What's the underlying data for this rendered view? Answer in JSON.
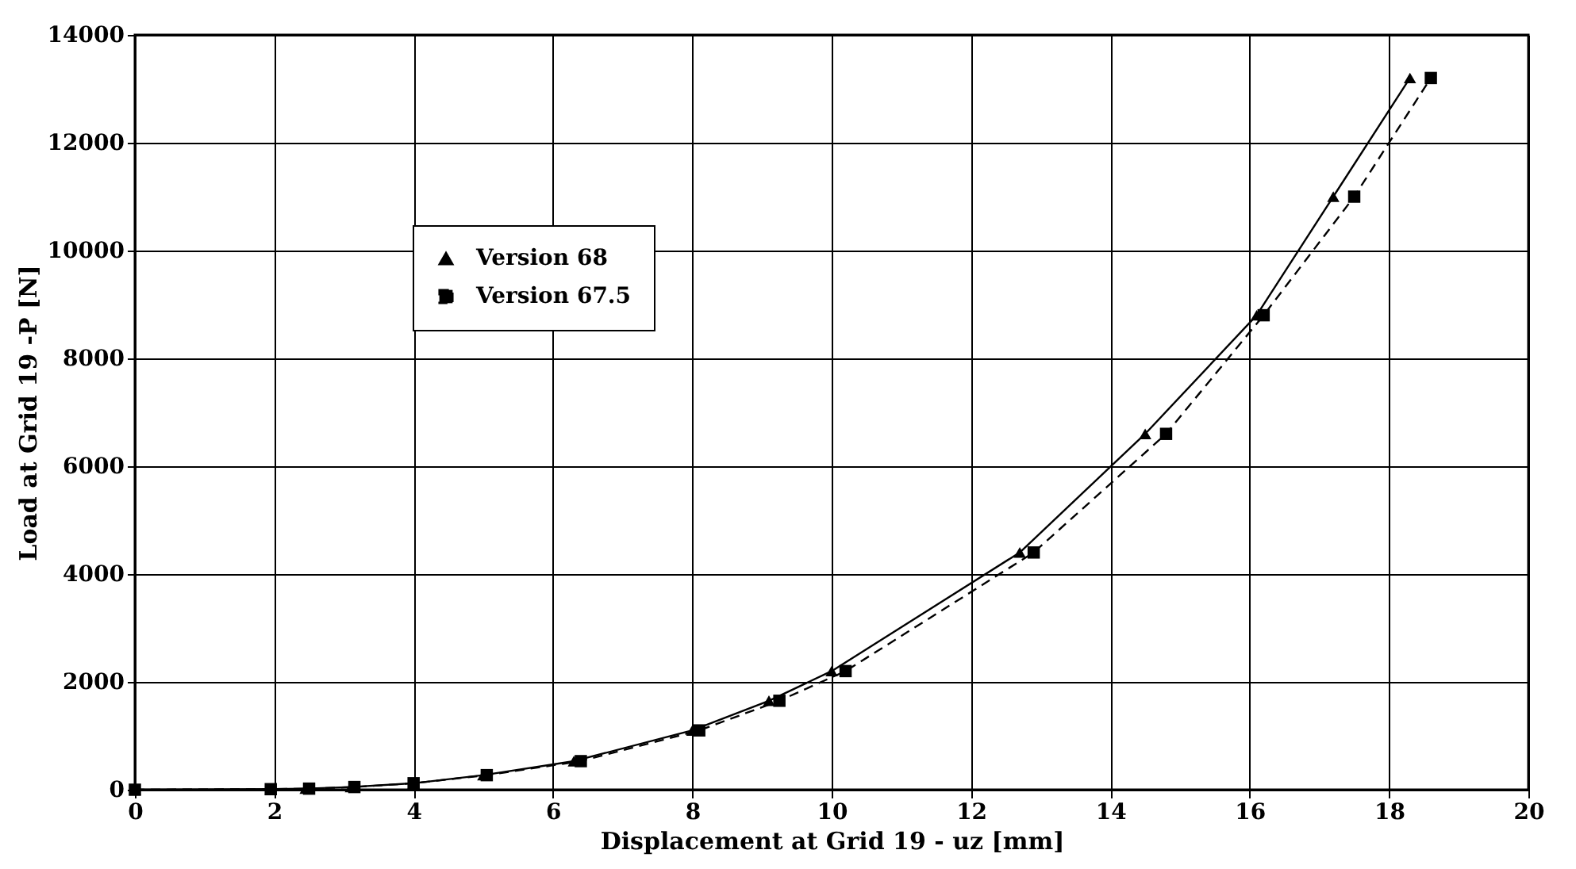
{
  "chart_data": {
    "type": "line",
    "xlabel": "Displacement at Grid 19 - uz [mm]",
    "ylabel": "Load at Grid 19 -P [N]",
    "xlim": [
      0,
      20
    ],
    "xticks": [
      0,
      2,
      4,
      6,
      8,
      10,
      12,
      14,
      16,
      18,
      20
    ],
    "ylim": [
      0,
      14000
    ],
    "yticks": [
      0,
      2000,
      4000,
      6000,
      8000,
      10000,
      12000,
      14000
    ],
    "grid": true,
    "legend": "top left",
    "series": [
      {
        "name": "Version 68",
        "color": "#000000",
        "marker": "triangle",
        "line_style": "solid",
        "x": [
          0,
          1.95,
          2.45,
          3.1,
          4.0,
          5.0,
          6.3,
          8.0,
          9.1,
          10.0,
          12.7,
          14.5,
          16.1,
          17.2,
          18.3
        ],
        "values": [
          0,
          10,
          20,
          50,
          120,
          270,
          530,
          1100,
          1650,
          2200,
          4400,
          6600,
          8800,
          11000,
          13200
        ]
      },
      {
        "name": "Version 67.5",
        "color": "#000000",
        "marker": "square",
        "line_style": "dashed",
        "x": [
          0,
          1.95,
          2.5,
          3.15,
          4.0,
          5.05,
          6.4,
          8.1,
          9.25,
          10.2,
          12.9,
          14.8,
          16.2,
          17.5,
          18.6
        ],
        "values": [
          0,
          10,
          20,
          50,
          120,
          270,
          530,
          1100,
          1650,
          2200,
          4400,
          6600,
          8800,
          11000,
          13200
        ]
      }
    ]
  }
}
